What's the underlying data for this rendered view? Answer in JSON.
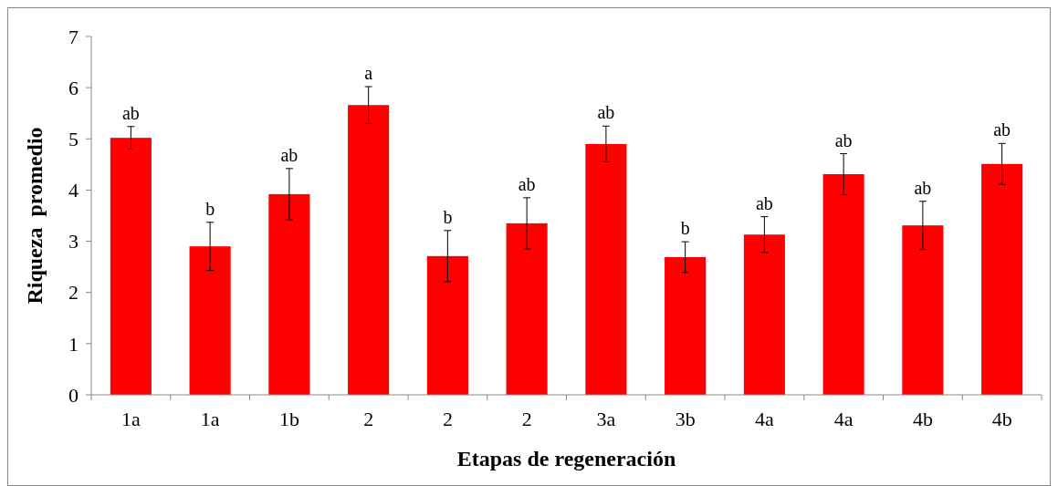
{
  "chart_data": {
    "type": "bar",
    "xlabel": "Etapas de regeneración",
    "ylabel": "Riqueza  promedio",
    "categories": [
      "1a",
      "1a",
      "1b",
      "2",
      "2",
      "2",
      "3a",
      "3b",
      "4a",
      "4a",
      "4b",
      "4b"
    ],
    "values": [
      5.02,
      2.9,
      3.92,
      5.66,
      2.71,
      3.35,
      4.9,
      2.69,
      3.13,
      4.31,
      3.31,
      4.51
    ],
    "errors": [
      0.22,
      0.47,
      0.5,
      0.36,
      0.5,
      0.5,
      0.35,
      0.3,
      0.35,
      0.4,
      0.47,
      0.4
    ],
    "color": "#ff0000",
    "ylim": [
      0,
      7
    ],
    "yticks": [
      0,
      1,
      2,
      3,
      4,
      5,
      6,
      7
    ],
    "grid": false,
    "annotations": [
      "ab",
      "b",
      "ab",
      "a",
      "b",
      "ab",
      "ab",
      "b",
      "ab",
      "ab",
      "ab",
      "ab"
    ]
  }
}
